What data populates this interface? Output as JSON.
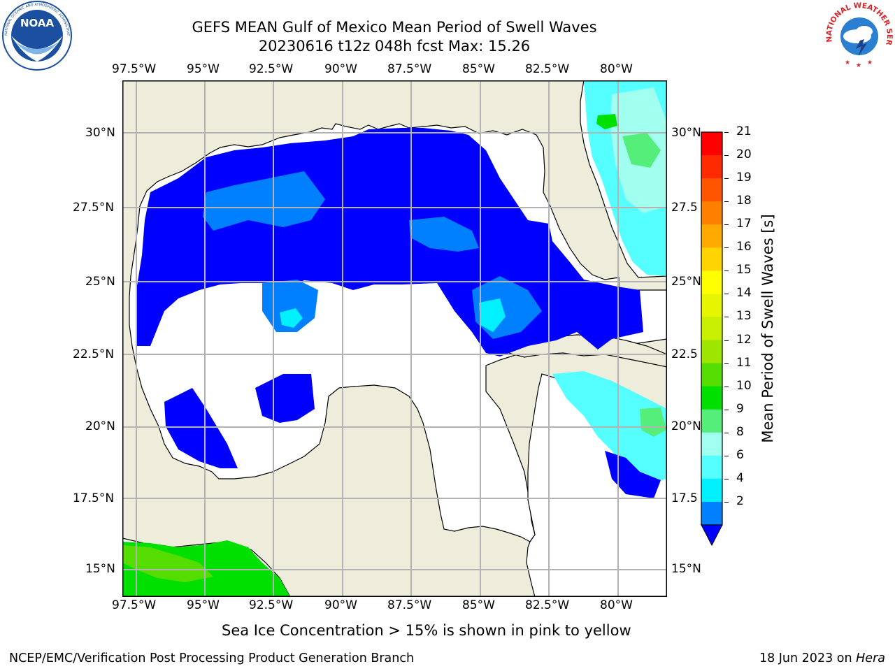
{
  "title": {
    "line1": "GEFS MEAN Gulf of Mexico Mean Period of Swell Waves",
    "line2": "20230616 t12z 048h fcst   Max: 15.26"
  },
  "logos": {
    "noaa": {
      "text": "NOAA",
      "ring_text": "NATIONAL OCEANIC AND ATMOSPHERIC ADMINISTRATION · U.S. DEPARTMENT OF COMMERCE",
      "color": "#1b4fa0"
    },
    "nws": {
      "ring_text": "NATIONAL WEATHER SERVICE",
      "color": "#d6262a"
    }
  },
  "map": {
    "land_color": "#eeeddb",
    "water_color": "#ffffff",
    "grid_color": "#b3b3b3",
    "lon_labels": [
      "97.5°W",
      "95°W",
      "92.5°W",
      "90°W",
      "87.5°W",
      "85°W",
      "82.5°W",
      "80°W"
    ],
    "lat_labels_left": [
      "30°N",
      "27.5°N",
      "25°N",
      "22.5°N",
      "20°N",
      "17.5°N",
      "15°N"
    ],
    "lat_labels_right": [
      "30°N",
      "27.5",
      "25°N",
      "22.5",
      "20°N",
      "17.5",
      "15°N"
    ]
  },
  "colorbar": {
    "label": "Mean Period of Swell Waves [s]",
    "ticks": [
      "21",
      "20",
      "19",
      "18",
      "17",
      "16",
      "15",
      "14",
      "13",
      "12",
      "11",
      "10",
      "9",
      "8",
      "6",
      "4",
      "2"
    ],
    "colors": [
      "#ff0000",
      "#ff2a00",
      "#ff5500",
      "#ff7f00",
      "#ffaa00",
      "#ffd400",
      "#ffff00",
      "#e6f500",
      "#c8ee00",
      "#9ee600",
      "#55dc00",
      "#00e000",
      "#55ee7a",
      "#a0ffee",
      "#55ffff",
      "#00f0ff",
      "#0080ff"
    ],
    "extend_color": "#0000ff"
  },
  "note": "Sea Ice Concentration > 15% is shown in pink to yellow",
  "footer": {
    "left": "NCEP/EMC/Verification Post Processing Product Generation Branch",
    "right_prefix": "18 Jun 2023 on ",
    "right_host": "Hera"
  }
}
